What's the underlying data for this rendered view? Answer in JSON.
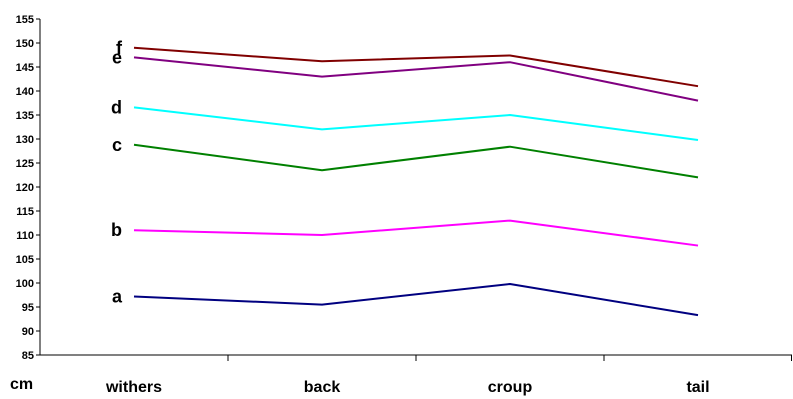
{
  "chart_data": {
    "type": "line",
    "categories": [
      "withers",
      "back",
      "croup",
      "tail"
    ],
    "ylim": [
      85,
      155
    ],
    "yticks": [
      85,
      90,
      95,
      100,
      105,
      110,
      115,
      120,
      125,
      130,
      135,
      140,
      145,
      150,
      155
    ],
    "ylabel": "cm",
    "xlabel": "",
    "title": "",
    "grid": false,
    "series": [
      {
        "name": "a",
        "color": "#000080",
        "values": [
          97.2,
          95.5,
          99.8,
          93.3
        ]
      },
      {
        "name": "b",
        "color": "#ff00ff",
        "values": [
          111.0,
          110.0,
          113.0,
          107.8
        ]
      },
      {
        "name": "c",
        "color": "#008000",
        "values": [
          128.8,
          123.5,
          128.4,
          122.0
        ]
      },
      {
        "name": "d",
        "color": "#00ffff",
        "values": [
          136.6,
          132.0,
          135.0,
          129.8
        ]
      },
      {
        "name": "e",
        "color": "#800080",
        "values": [
          147.0,
          143.0,
          146.0,
          138.0
        ]
      },
      {
        "name": "f",
        "color": "#800000",
        "values": [
          149.0,
          146.2,
          147.4,
          141.0
        ]
      }
    ]
  }
}
